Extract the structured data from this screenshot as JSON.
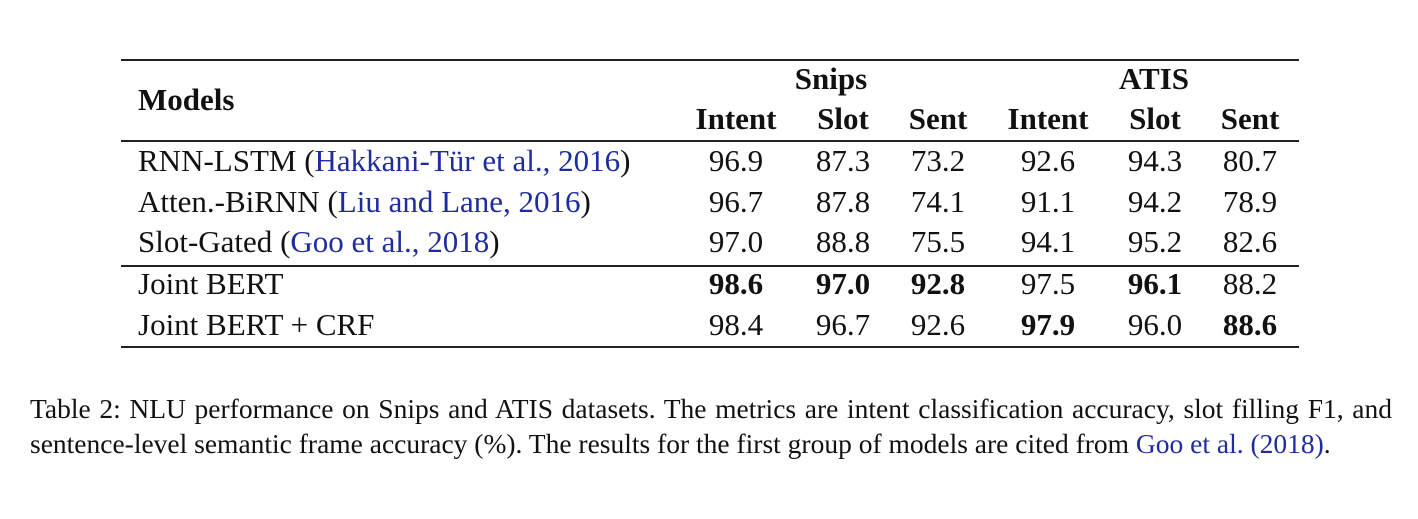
{
  "table": {
    "models_header": "Models",
    "groups": [
      {
        "label": "Snips"
      },
      {
        "label": "ATIS"
      }
    ],
    "metric_headers": [
      "Intent",
      "Slot",
      "Sent",
      "Intent",
      "Slot",
      "Sent"
    ],
    "rows": [
      {
        "model": "RNN-LSTM",
        "cite_open": " (",
        "cite": "Hakkani-Tür et al., 2016",
        "cite_close": ")",
        "values": [
          "96.9",
          "87.3",
          "73.2",
          "92.6",
          "94.3",
          "80.7"
        ],
        "bold": [
          false,
          false,
          false,
          false,
          false,
          false
        ]
      },
      {
        "model": "Atten.-BiRNN",
        "cite_open": " (",
        "cite": "Liu and Lane, 2016",
        "cite_close": ")",
        "values": [
          "96.7",
          "87.8",
          "74.1",
          "91.1",
          "94.2",
          "78.9"
        ],
        "bold": [
          false,
          false,
          false,
          false,
          false,
          false
        ]
      },
      {
        "model": "Slot-Gated",
        "cite_open": " (",
        "cite": "Goo et al., 2018",
        "cite_close": ")",
        "values": [
          "97.0",
          "88.8",
          "75.5",
          "94.1",
          "95.2",
          "82.6"
        ],
        "bold": [
          false,
          false,
          false,
          false,
          false,
          false
        ]
      },
      {
        "model": "Joint BERT",
        "cite_open": "",
        "cite": "",
        "cite_close": "",
        "values": [
          "98.6",
          "97.0",
          "92.8",
          "97.5",
          "96.1",
          "88.2"
        ],
        "bold": [
          true,
          true,
          true,
          false,
          true,
          false
        ]
      },
      {
        "model": "Joint BERT + CRF",
        "cite_open": "",
        "cite": "",
        "cite_close": "",
        "values": [
          "98.4",
          "96.7",
          "92.6",
          "97.9",
          "96.0",
          "88.6"
        ],
        "bold": [
          false,
          false,
          false,
          true,
          false,
          true
        ]
      }
    ]
  },
  "caption": {
    "text": "Table 2: NLU performance on Snips and ATIS datasets. The metrics are intent classification accuracy, slot filling F1, and sentence-level semantic frame accuracy (%). The results for the first group of models are cited from ",
    "cite": "Goo et al. (2018)",
    "tail": "."
  }
}
